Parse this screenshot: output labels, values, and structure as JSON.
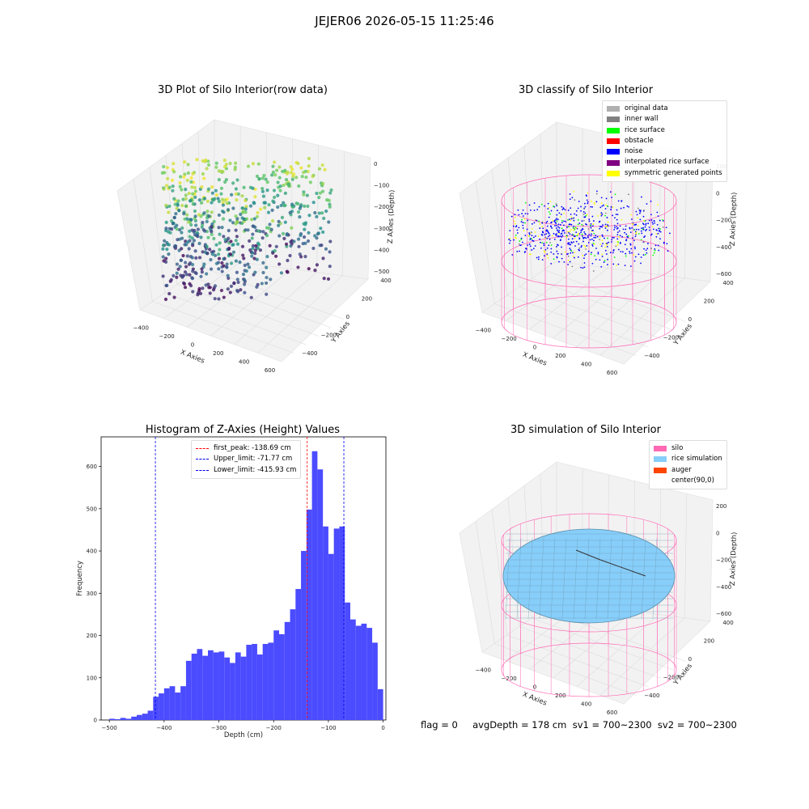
{
  "suptitle": "JEJER06 2026-05-15 11:25:46",
  "colors": {
    "hist_bar": "#4b4bff",
    "first_peak": "#ff0000",
    "limits": "#0000ee",
    "silo": "#ff69b4",
    "rice": "#87cefa",
    "auger": "#ff4500",
    "original": "#b0b0b0",
    "inner_wall": "#808080",
    "rice_surface": "#00ff00",
    "obstacle": "#ff0000",
    "noise": "#0000ff",
    "interpolated": "#800080",
    "symmetric": "#ffff00"
  },
  "chart_data": [
    {
      "type": "scatter",
      "title": "3D Plot of Silo Interior(row data)",
      "xlabel": "X Axies",
      "ylabel": "Y Axies",
      "zlabel": "Z Axies (Depth)",
      "x_ticks": [
        "−400",
        "−200",
        "0",
        "200",
        "400",
        "600"
      ],
      "y_ticks": [
        "−400",
        "−200",
        "0",
        "200",
        "400"
      ],
      "z_ticks": [
        "0",
        "−100",
        "−200",
        "−300",
        "−400",
        "−500"
      ],
      "colormap": "viridis"
    },
    {
      "type": "scatter",
      "title": "3D classify of Silo Interior",
      "xlabel": "X Axies",
      "ylabel": "Y Axies",
      "zlabel": "Z Axies (Depth)",
      "x_ticks": [
        "−400",
        "−200",
        "0",
        "200",
        "400",
        "600"
      ],
      "y_ticks": [
        "−400",
        "−200",
        "0",
        "200",
        "400"
      ],
      "z_ticks": [
        "200",
        "0",
        "−200",
        "−400",
        "−600"
      ],
      "legend": [
        "original data",
        "inner wall",
        "rice surface",
        "obstacle",
        "noise",
        "interpolated rice surface",
        "symmetric generated points"
      ],
      "legend_placement": "top-right"
    },
    {
      "type": "bar",
      "title": "Histogram of Z-Axies (Height) Values",
      "xlabel": "Depth (cm)",
      "ylabel": "Frequency",
      "xlim": [
        -515,
        5
      ],
      "ylim": [
        0,
        670
      ],
      "x_ticks": [
        -500,
        -400,
        -300,
        -200,
        -100,
        0
      ],
      "x_tick_labels": [
        "−500",
        "−400",
        "−300",
        "−200",
        "−100",
        "0"
      ],
      "y_ticks": [
        0,
        100,
        200,
        300,
        400,
        500,
        600
      ],
      "bin_start": -500,
      "bin_width": 10,
      "values": [
        3,
        2,
        5,
        3,
        8,
        12,
        15,
        22,
        55,
        63,
        75,
        80,
        65,
        80,
        140,
        157,
        168,
        152,
        165,
        160,
        162,
        148,
        135,
        160,
        150,
        178,
        180,
        155,
        180,
        183,
        212,
        203,
        232,
        262,
        310,
        400,
        498,
        636,
        593,
        458,
        393,
        453,
        458,
        278,
        238,
        223,
        228,
        218,
        183,
        73
      ],
      "vlines": [
        {
          "label": "first_peak: -138.69 cm",
          "x": -138.69,
          "color": "#ff0000"
        },
        {
          "label": "Upper_limit: -71.77 cm",
          "x": -71.77,
          "color": "#0000ee"
        },
        {
          "label": "Lower_limit: -415.93 cm",
          "x": -415.93,
          "color": "#0000ee"
        }
      ],
      "legend_placement": "upper center"
    },
    {
      "type": "area",
      "title": "3D simulation of Silo Interior",
      "xlabel": "X Axies",
      "ylabel": "Y Axies",
      "zlabel": "Z Axies (Depth)",
      "x_ticks": [
        "−400",
        "−200",
        "0",
        "200",
        "400",
        "600"
      ],
      "y_ticks": [
        "−400",
        "−200",
        "0",
        "200",
        "400"
      ],
      "z_ticks": [
        "200",
        "0",
        "−200",
        "−400",
        "−600"
      ],
      "legend": [
        "silo",
        "rice simulation",
        "auger",
        "center(90,0)"
      ],
      "legend_placement": "top-right"
    }
  ],
  "footer": "flag = 0     avgDepth = 178 cm  sv1 = 700~2300  sv2 = 700~2300"
}
